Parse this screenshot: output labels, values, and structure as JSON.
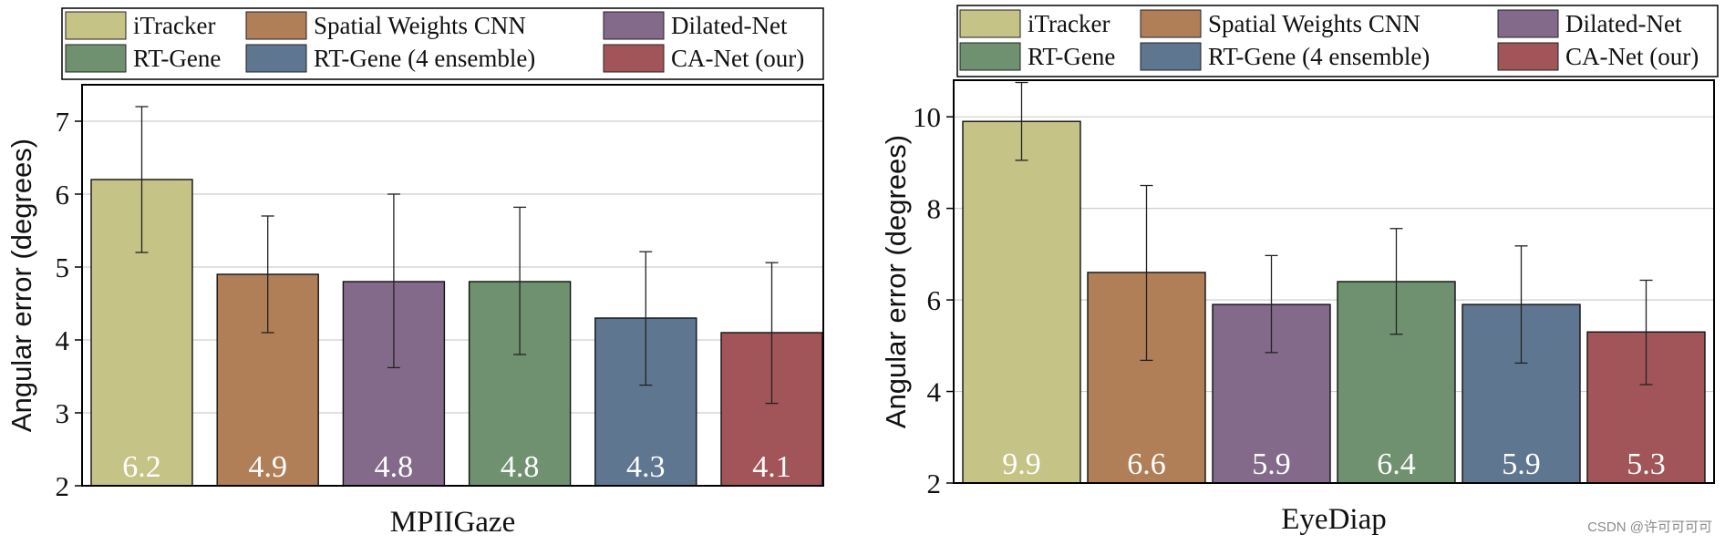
{
  "legend": {
    "items": [
      {
        "label": "iTracker",
        "color": "#c5c386"
      },
      {
        "label": "Spatial Weights CNN",
        "color": "#b17f57"
      },
      {
        "label": "Dilated-Net",
        "color": "#836a8a"
      },
      {
        "label": "RT-Gene",
        "color": "#6f9170"
      },
      {
        "label": "RT-Gene (4 ensemble)",
        "color": "#5f7690"
      },
      {
        "label": "CA-Net (our)",
        "color": "#a25558"
      }
    ]
  },
  "chart_data": [
    {
      "type": "bar",
      "title": "MPIIGaze",
      "xlabel": "MPIIGaze",
      "ylabel": "Angular error (degrees)",
      "ylim": [
        2,
        7.5
      ],
      "yticks": [
        2,
        3,
        4,
        5,
        6,
        7
      ],
      "grid": true,
      "categories": [
        "iTracker",
        "Spatial Weights CNN",
        "Dilated-Net",
        "RT-Gene",
        "RT-Gene (4 ensemble)",
        "CA-Net (our)"
      ],
      "values": [
        6.2,
        4.9,
        4.8,
        4.8,
        4.3,
        4.1
      ],
      "value_labels": [
        "6.2",
        "4.9",
        "4.8",
        "4.8",
        "4.3",
        "4.1"
      ],
      "error_low": [
        5.2,
        4.1,
        3.62,
        3.8,
        3.38,
        3.13
      ],
      "error_high": [
        7.2,
        5.7,
        6.0,
        5.82,
        5.21,
        5.06
      ]
    },
    {
      "type": "bar",
      "title": "EyeDiap",
      "xlabel": "EyeDiap",
      "ylabel": "Angular error (degrees)",
      "ylim": [
        2,
        10.8
      ],
      "yticks": [
        2,
        4,
        6,
        8,
        10
      ],
      "grid": true,
      "categories": [
        "iTracker",
        "Spatial Weights CNN",
        "Dilated-Net",
        "RT-Gene",
        "RT-Gene (4 ensemble)",
        "CA-Net (our)"
      ],
      "values": [
        9.9,
        6.6,
        5.9,
        6.4,
        5.9,
        5.3
      ],
      "value_labels": [
        "9.9",
        "6.6",
        "5.9",
        "6.4",
        "5.9",
        "5.3"
      ],
      "error_low": [
        9.05,
        4.68,
        4.85,
        5.25,
        4.62,
        4.15
      ],
      "error_high": [
        10.75,
        8.5,
        6.97,
        7.56,
        7.18,
        6.43
      ]
    }
  ],
  "watermark": "CSDN @许可可可可"
}
